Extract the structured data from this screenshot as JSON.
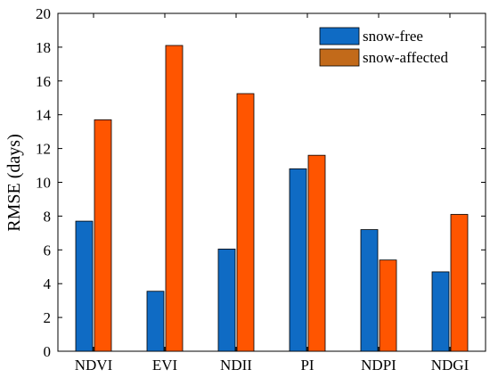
{
  "chart_data": {
    "type": "bar",
    "categories": [
      "NDVI",
      "EVI",
      "NDII",
      "PI",
      "NDPI",
      "NDGI"
    ],
    "series": [
      {
        "name": "snow-free",
        "values": [
          7.7,
          3.55,
          6.05,
          10.8,
          7.2,
          4.7
        ]
      },
      {
        "name": "snow-affected",
        "values": [
          13.7,
          18.1,
          15.25,
          11.6,
          5.4,
          8.1
        ]
      }
    ],
    "title": "",
    "xlabel": "",
    "ylabel": "RMSE (days)",
    "ylim": [
      0,
      20
    ],
    "yticks": [
      0,
      2,
      4,
      6,
      8,
      10,
      12,
      14,
      16,
      18,
      20
    ],
    "grid": false,
    "legend_position": "top-right",
    "colors": {
      "snow-free": "#0F6BC4",
      "snow-affected": "#FF5500",
      "legend_snow_affected": "#C26A1A",
      "edge": "#000000"
    }
  }
}
